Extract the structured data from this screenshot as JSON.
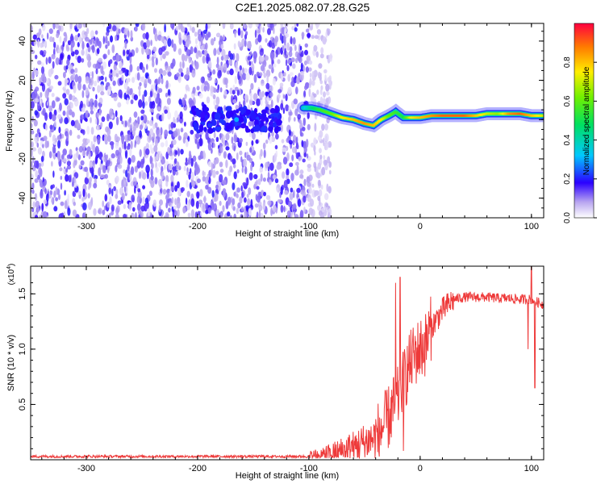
{
  "title": "C2E1.2025.082.07.28.G25",
  "chart_data": [
    {
      "type": "heatmap",
      "name": "spectrogram",
      "xlabel": "Height of straight line (km)",
      "ylabel": "Frequency (Hz)",
      "xlim": [
        -350,
        111
      ],
      "ylim": [
        -50,
        49
      ],
      "xticks": [
        -300,
        -200,
        -100,
        0,
        100
      ],
      "yticks": [
        -40,
        -20,
        0,
        20,
        40
      ],
      "noise_region_x": [
        -350,
        -80
      ],
      "dense_noise_edge_x": -100,
      "cluster_center": {
        "x": -165,
        "y": 0
      },
      "ridge": {
        "x": [
          -105,
          -98,
          -90,
          -80,
          -70,
          -60,
          -50,
          -42,
          -35,
          -28,
          -22,
          -15,
          -8,
          0,
          10,
          20,
          30,
          40,
          50,
          60,
          70,
          80,
          90,
          100,
          111
        ],
        "y": [
          6,
          6,
          5,
          3,
          1,
          0,
          -2,
          -3,
          0,
          2,
          4,
          1,
          1,
          1,
          2,
          2,
          2,
          2,
          2,
          3,
          3,
          3,
          3,
          2,
          2
        ],
        "amp": [
          0.3,
          0.45,
          0.55,
          0.6,
          0.75,
          0.8,
          0.85,
          0.8,
          0.75,
          0.6,
          0.55,
          0.5,
          0.75,
          0.8,
          0.85,
          0.9,
          0.9,
          0.9,
          0.8,
          0.7,
          0.65,
          0.85,
          0.9,
          0.8,
          0.7
        ]
      },
      "colorbar": {
        "label": "Normalized spectral amplitude",
        "range": [
          0.0,
          1.0
        ],
        "ticks": [
          0.0,
          0.2,
          0.4,
          0.6,
          0.8
        ]
      }
    },
    {
      "type": "line",
      "name": "snr",
      "xlabel": "Height of straight line (km)",
      "ylabel": "SNR (10 * v/v)",
      "yscale_label": "(x10",
      "yscale_exp": "4",
      "xlim": [
        -350,
        111
      ],
      "ylim": [
        0,
        1.75
      ],
      "xticks": [
        -300,
        -200,
        -100,
        0,
        100
      ],
      "yticks": [
        0.5,
        1.0,
        1.5
      ],
      "color": "#ee3a3a",
      "trend": {
        "x": [
          -350,
          -100,
          -80,
          -60,
          -40,
          -30,
          -20,
          -15,
          -10,
          -5,
          0,
          5,
          10,
          20,
          30,
          40,
          50,
          60,
          70,
          80,
          90,
          100,
          111
        ],
        "y": [
          0.03,
          0.03,
          0.05,
          0.12,
          0.2,
          0.35,
          0.55,
          0.7,
          0.85,
          0.95,
          1.0,
          1.05,
          1.2,
          1.35,
          1.45,
          1.47,
          1.47,
          1.47,
          1.46,
          1.46,
          1.45,
          1.45,
          1.4
        ]
      },
      "spikes": [
        {
          "x": -22,
          "y": 1.6
        },
        {
          "x": -18,
          "y": 1.65
        },
        {
          "x": -15,
          "y": 0.08
        },
        {
          "x": 97,
          "y": 1.0
        },
        {
          "x": 100,
          "y": 1.75
        },
        {
          "x": 103,
          "y": 0.65
        }
      ]
    }
  ]
}
